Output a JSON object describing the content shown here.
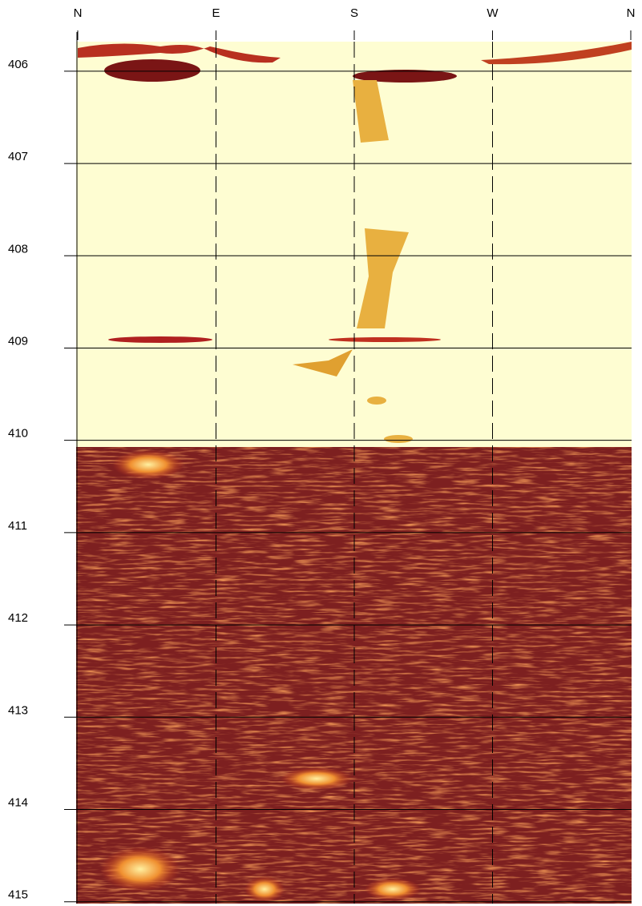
{
  "chart_data": {
    "type": "image",
    "xlabels": [
      "N",
      "E",
      "S",
      "W",
      "N"
    ],
    "ylim": [
      405.68,
      415.02
    ],
    "yticks": [
      406,
      407,
      408,
      409,
      410,
      411,
      412,
      413,
      414,
      415
    ],
    "grid": true
  }
}
